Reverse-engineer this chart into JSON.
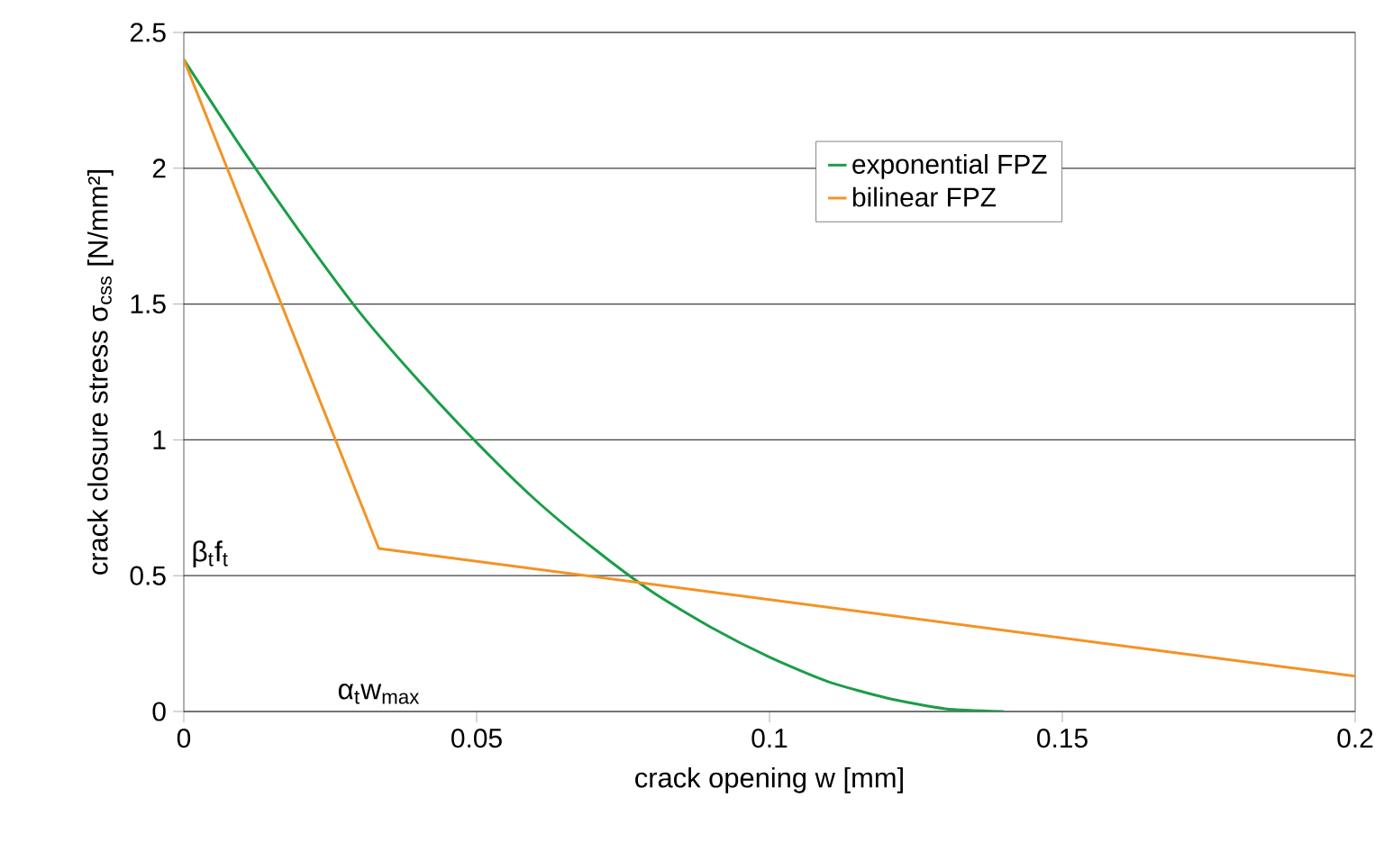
{
  "chart_data": {
    "type": "line",
    "xlabel": "crack opening w  [mm]",
    "ylabel": "crack closure stress σ$_{css}$ [N/mm²]",
    "xlim": [
      0,
      0.2
    ],
    "ylim": [
      0,
      2.5
    ],
    "xticks": [
      0,
      0.05,
      0.1,
      0.15,
      0.2
    ],
    "yticks": [
      0,
      0.5,
      1,
      1.5,
      2,
      2.5
    ],
    "grid": "y",
    "legend": "top right",
    "marker": "none",
    "line_style": "solid",
    "series": [
      {
        "name": "exponential FPZ",
        "color": "#1a9e48",
        "x": [
          0,
          0.01,
          0.02,
          0.03,
          0.04,
          0.05,
          0.06,
          0.07,
          0.08,
          0.09,
          0.1,
          0.11,
          0.12,
          0.13,
          0.14
        ],
        "values": [
          2.4,
          2.07,
          1.76,
          1.47,
          1.22,
          0.99,
          0.78,
          0.6,
          0.44,
          0.31,
          0.2,
          0.11,
          0.05,
          0.01,
          0
        ]
      },
      {
        "name": "bilinear FPZ",
        "color": "#f39325",
        "x": [
          0,
          0.0333,
          0.2
        ],
        "values": [
          2.4,
          0.6,
          0.13
        ]
      }
    ],
    "annotations": [
      "β$_{t}$f$_{t}$",
      "α$_{t}$w$_{max}$"
    ]
  }
}
